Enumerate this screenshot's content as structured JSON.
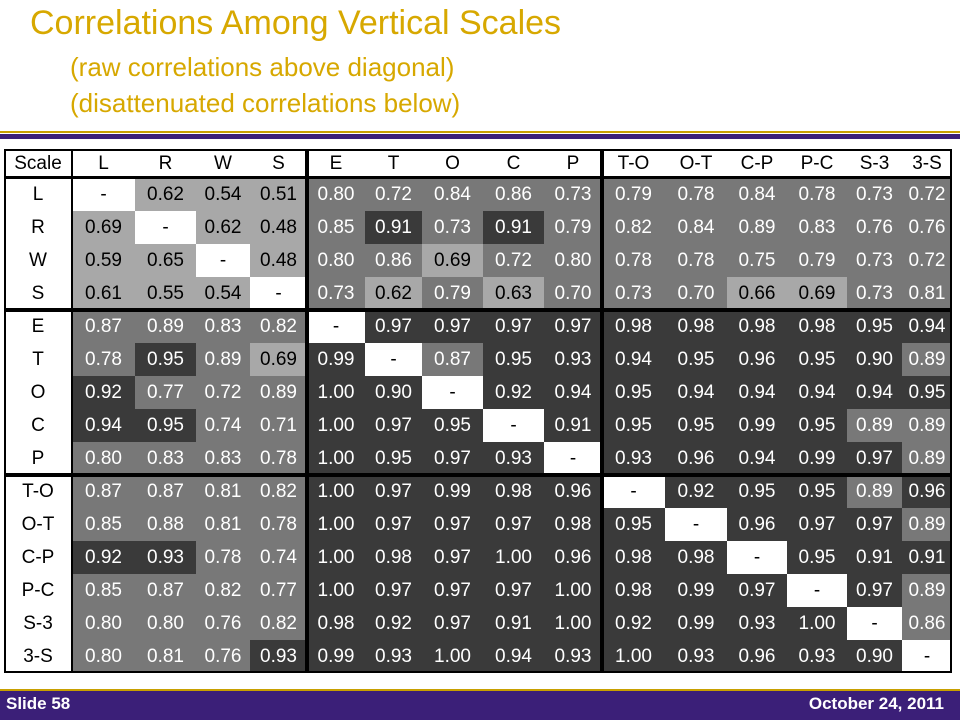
{
  "title": {
    "main": "Correlations Among Vertical Scales",
    "sub1": "(raw correlations above diagonal)",
    "sub2": "(disattenuated correlations below)"
  },
  "footer": {
    "left": "Slide 58",
    "right": "October 24, 2011"
  },
  "matrix": {
    "corner": "Scale",
    "labels": [
      "L",
      "R",
      "W",
      "S",
      "E",
      "T",
      "O",
      "C",
      "P",
      "T-O",
      "O-T",
      "C-P",
      "P-C",
      "S-3",
      "3-S"
    ],
    "rows": [
      [
        "-",
        "0.62",
        "0.54",
        "0.51",
        "0.80",
        "0.72",
        "0.84",
        "0.86",
        "0.73",
        "0.79",
        "0.78",
        "0.84",
        "0.78",
        "0.73",
        "0.72"
      ],
      [
        "0.69",
        "-",
        "0.62",
        "0.48",
        "0.85",
        "0.91",
        "0.73",
        "0.91",
        "0.79",
        "0.82",
        "0.84",
        "0.89",
        "0.83",
        "0.76",
        "0.76"
      ],
      [
        "0.59",
        "0.65",
        "-",
        "0.48",
        "0.80",
        "0.86",
        "0.69",
        "0.72",
        "0.80",
        "0.78",
        "0.78",
        "0.75",
        "0.79",
        "0.73",
        "0.72"
      ],
      [
        "0.61",
        "0.55",
        "0.54",
        "-",
        "0.73",
        "0.62",
        "0.79",
        "0.63",
        "0.70",
        "0.73",
        "0.70",
        "0.66",
        "0.69",
        "0.73",
        "0.81"
      ],
      [
        "0.87",
        "0.89",
        "0.83",
        "0.82",
        "-",
        "0.97",
        "0.97",
        "0.97",
        "0.97",
        "0.98",
        "0.98",
        "0.98",
        "0.98",
        "0.95",
        "0.94"
      ],
      [
        "0.78",
        "0.95",
        "0.89",
        "0.69",
        "0.99",
        "-",
        "0.87",
        "0.95",
        "0.93",
        "0.94",
        "0.95",
        "0.96",
        "0.95",
        "0.90",
        "0.89"
      ],
      [
        "0.92",
        "0.77",
        "0.72",
        "0.89",
        "1.00",
        "0.90",
        "-",
        "0.92",
        "0.94",
        "0.95",
        "0.94",
        "0.94",
        "0.94",
        "0.94",
        "0.95"
      ],
      [
        "0.94",
        "0.95",
        "0.74",
        "0.71",
        "1.00",
        "0.97",
        "0.95",
        "-",
        "0.91",
        "0.95",
        "0.95",
        "0.99",
        "0.95",
        "0.89",
        "0.89"
      ],
      [
        "0.80",
        "0.83",
        "0.83",
        "0.78",
        "1.00",
        "0.95",
        "0.97",
        "0.93",
        "-",
        "0.93",
        "0.96",
        "0.94",
        "0.99",
        "0.97",
        "0.89"
      ],
      [
        "0.87",
        "0.87",
        "0.81",
        "0.82",
        "1.00",
        "0.97",
        "0.99",
        "0.98",
        "0.96",
        "-",
        "0.92",
        "0.95",
        "0.95",
        "0.89",
        "0.96"
      ],
      [
        "0.85",
        "0.88",
        "0.81",
        "0.78",
        "1.00",
        "0.97",
        "0.97",
        "0.97",
        "0.98",
        "0.95",
        "-",
        "0.96",
        "0.97",
        "0.97",
        "0.89"
      ],
      [
        "0.92",
        "0.93",
        "0.78",
        "0.74",
        "1.00",
        "0.98",
        "0.97",
        "1.00",
        "0.96",
        "0.98",
        "0.98",
        "-",
        "0.95",
        "0.91",
        "0.91"
      ],
      [
        "0.85",
        "0.87",
        "0.82",
        "0.77",
        "1.00",
        "0.97",
        "0.97",
        "0.97",
        "1.00",
        "0.98",
        "0.99",
        "0.97",
        "-",
        "0.97",
        "0.89"
      ],
      [
        "0.80",
        "0.80",
        "0.76",
        "0.82",
        "0.98",
        "0.92",
        "0.97",
        "0.91",
        "1.00",
        "0.92",
        "0.99",
        "0.93",
        "1.00",
        "-",
        "0.86"
      ],
      [
        "0.80",
        "0.81",
        "0.76",
        "0.93",
        "0.99",
        "0.93",
        "1.00",
        "0.94",
        "0.93",
        "1.00",
        "0.93",
        "0.96",
        "0.93",
        "0.90",
        "-"
      ]
    ],
    "group_breaks": [
      4,
      9
    ],
    "shading": {
      "light": "#A8A8A8",
      "mid": "#787878",
      "dark": "#3A3A3A",
      "diagonal": "#FFFFFF"
    }
  },
  "colors": {
    "title": "#D7A800",
    "bar": "#3B1F78",
    "accent_line": "#C8A000"
  }
}
